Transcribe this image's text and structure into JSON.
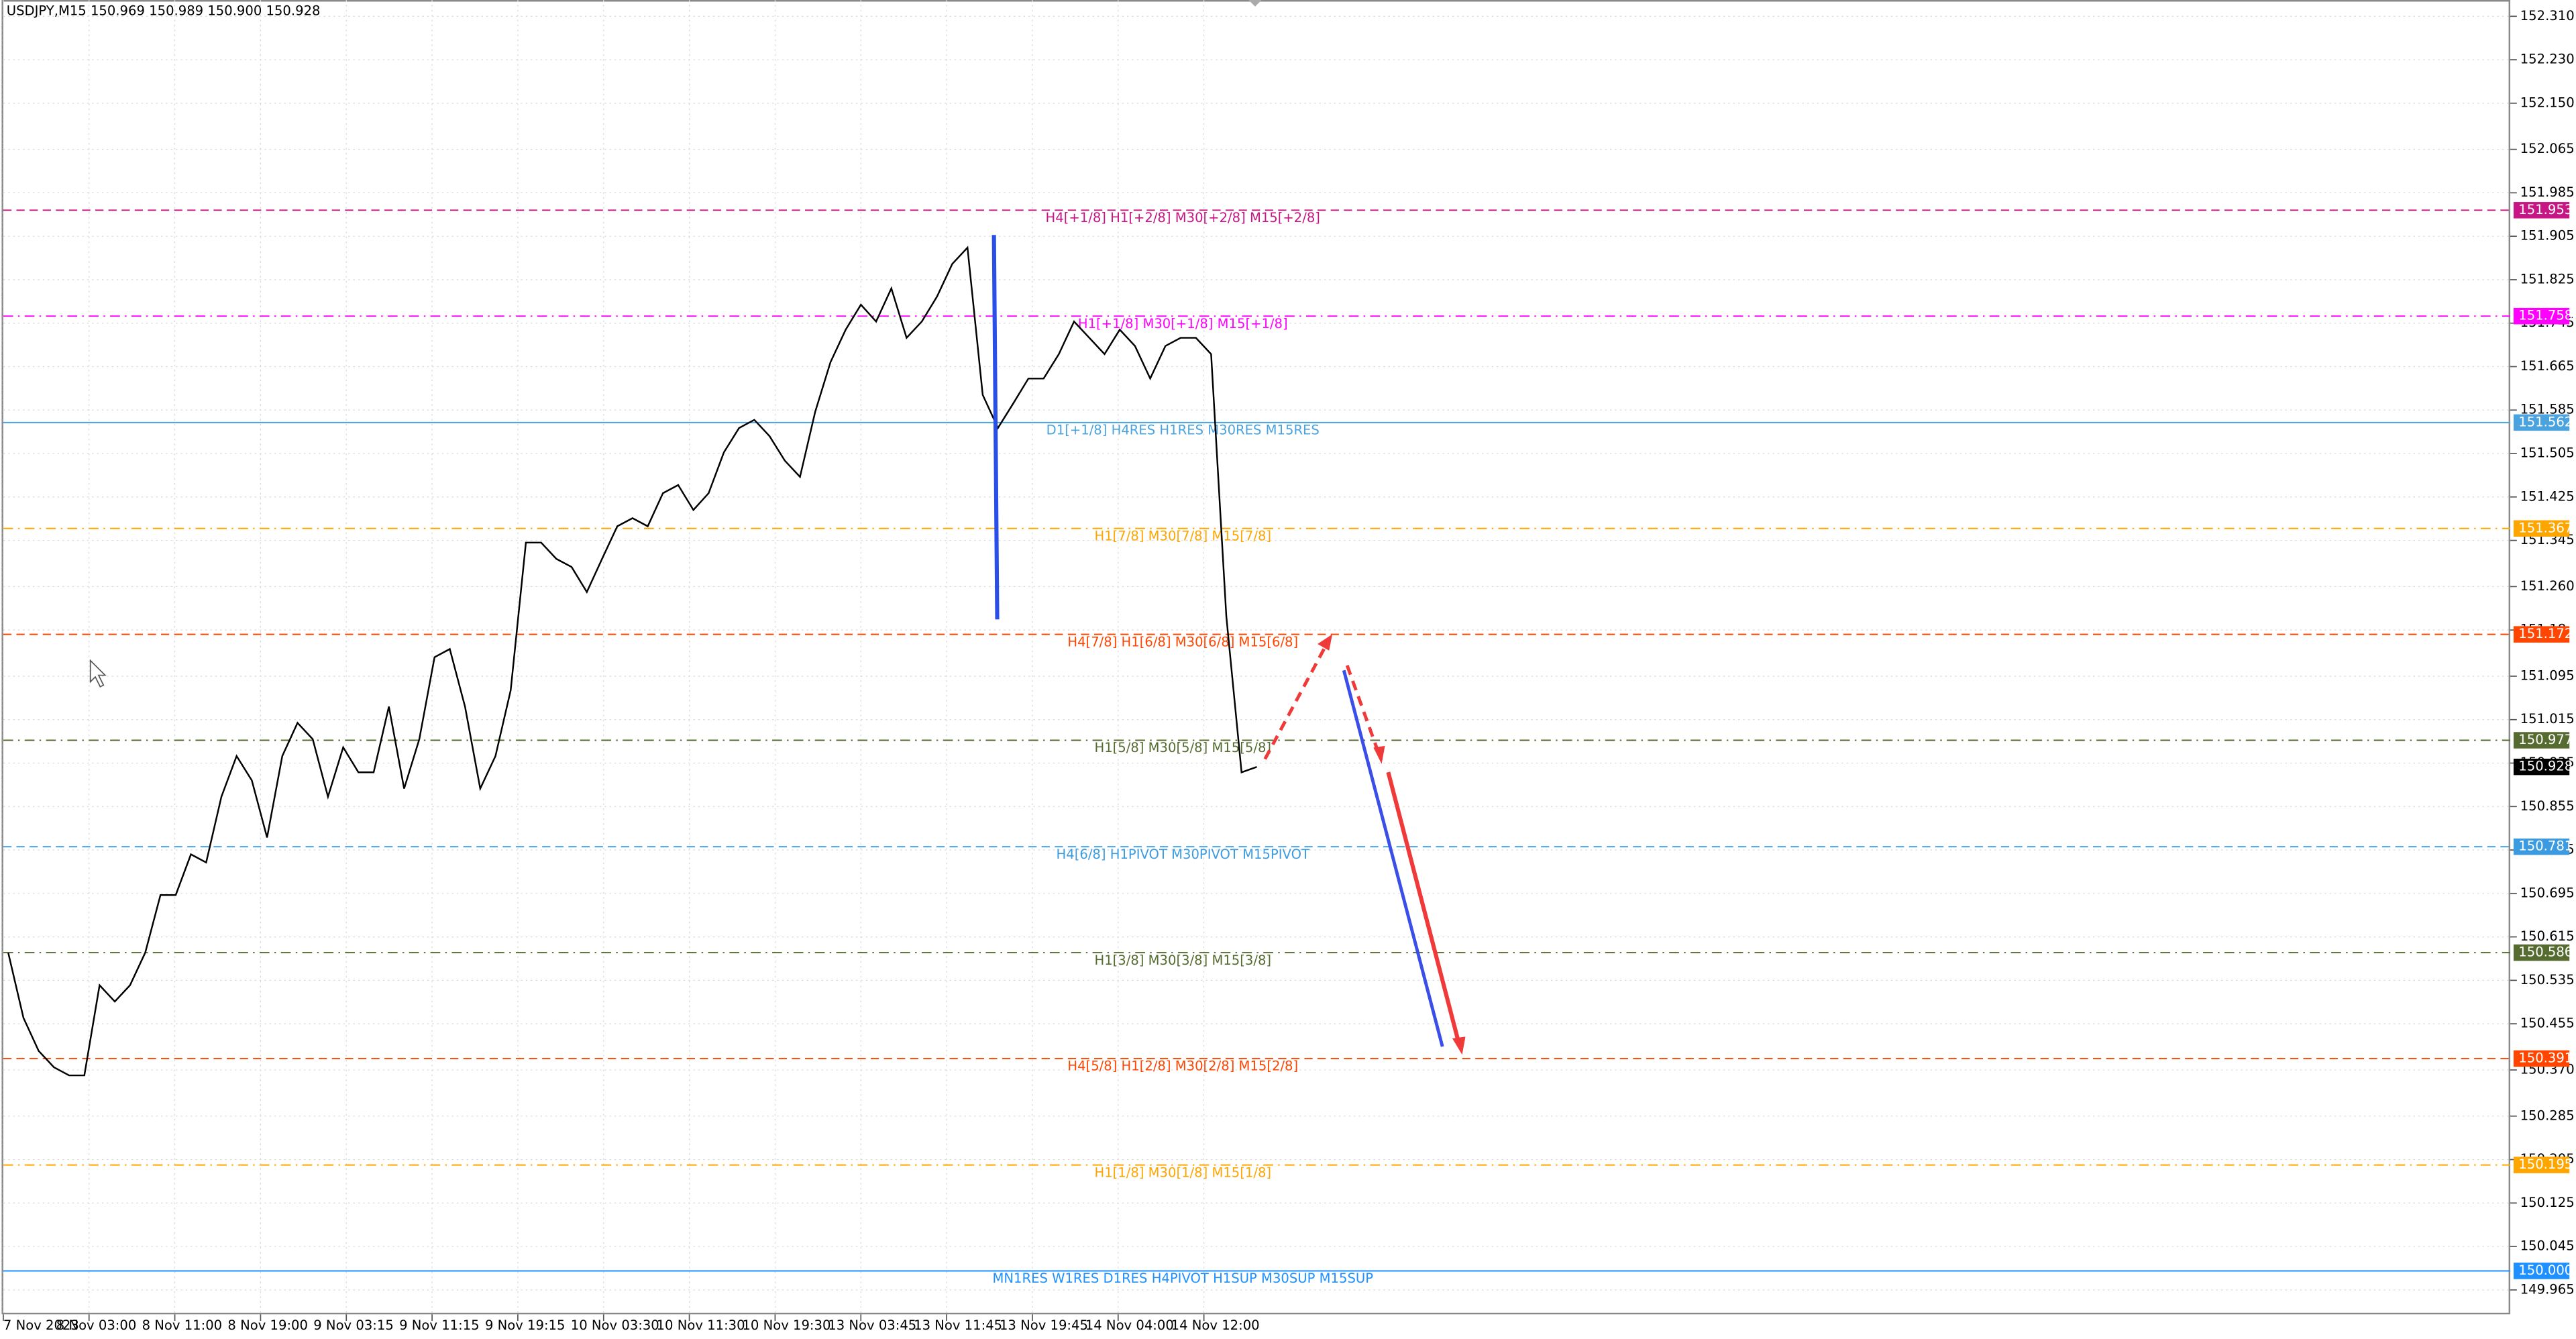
{
  "chart_data": {
    "type": "line",
    "title": "USDJPY,M15  150.969 150.989 150.900 150.928",
    "x_labels": [
      "7 Nov 2023",
      "8 Nov 03:00",
      "8 Nov 11:00",
      "8 Nov 19:00",
      "9 Nov 03:15",
      "9 Nov 11:15",
      "9 Nov 19:15",
      "10 Nov 03:30",
      "10 Nov 11:30",
      "10 Nov 19:30",
      "13 Nov 03:45",
      "13 Nov 11:45",
      "13 Nov 19:45",
      "14 Nov 04:00",
      "14 Nov 12:00"
    ],
    "series": [
      {
        "name": "USDJPY",
        "color": "#000000",
        "values": [
          150.586,
          150.466,
          150.405,
          150.375,
          150.36,
          150.36,
          150.526,
          150.496,
          150.526,
          150.586,
          150.692,
          150.692,
          150.767,
          150.752,
          150.873,
          150.948,
          150.903,
          150.798,
          150.948,
          151.009,
          150.979,
          150.873,
          150.964,
          150.918,
          150.918,
          151.039,
          150.888,
          150.979,
          151.13,
          151.145,
          151.039,
          150.888,
          150.948,
          151.069,
          151.341,
          151.341,
          151.311,
          151.296,
          151.25,
          151.311,
          151.371,
          151.386,
          151.371,
          151.432,
          151.447,
          151.401,
          151.432,
          151.507,
          151.552,
          151.567,
          151.537,
          151.492,
          151.462,
          151.582,
          151.673,
          151.733,
          151.779,
          151.748,
          151.809,
          151.718,
          151.748,
          151.794,
          151.854,
          151.884,
          151.613,
          151.552,
          151.597,
          151.643,
          151.643,
          151.688,
          151.748,
          151.718,
          151.688,
          151.733,
          151.703,
          151.643,
          151.703,
          151.718,
          151.718,
          151.688,
          151.205,
          150.918,
          150.928
        ]
      }
    ],
    "ylim": [
      149.92,
      152.34
    ],
    "yticks": [
      {
        "value": 152.31,
        "label": "152.310"
      },
      {
        "value": 152.23,
        "label": "152.230"
      },
      {
        "value": 152.15,
        "label": "152.150"
      },
      152.065,
      151.985,
      151.905,
      151.825,
      151.745,
      151.665,
      151.585,
      151.505,
      151.425,
      151.345,
      {
        "value": 151.26,
        "label": "151.260"
      },
      151.18,
      151.095,
      151.015,
      150.935,
      150.855,
      150.775,
      150.695,
      150.615,
      150.535,
      150.455,
      {
        "value": 150.37,
        "label": "150.370"
      },
      150.285,
      150.205,
      150.125,
      150.045,
      149.965
    ],
    "grid": true,
    "current_price": 150.928,
    "levels": [
      {
        "price": 151.953,
        "label": "H4[+1/8] H1[+2/8] M30[+2/8] M15[+2/8]",
        "color": "#c71585",
        "style": "dashed"
      },
      {
        "price": 151.758,
        "label": "H1[+1/8] M30[+1/8] M15[+1/8]",
        "color": "#ff00ff",
        "style": "dashdot"
      },
      {
        "price": 151.562,
        "label": "D1[+1/8] H4RES H1RES M30RES M15RES",
        "color": "#4aa3df",
        "style": "solid"
      },
      {
        "price": 151.367,
        "label": "H1[7/8] M30[7/8] M15[7/8]",
        "color": "#ffa500",
        "style": "dashdot"
      },
      {
        "price": 151.172,
        "label": "H4[7/8] H1[6/8] M30[6/8] M15[6/8]",
        "color": "#ff4500",
        "style": "dashed"
      },
      {
        "price": 150.977,
        "label": "H1[5/8] M30[5/8] M15[5/8]",
        "color": "#556b2f",
        "style": "dashdot"
      },
      {
        "price": 150.781,
        "label": "H4[6/8] H1PIVOT M30PIVOT M15PIVOT",
        "color": "#3c9be0",
        "style": "dashed"
      },
      {
        "price": 150.586,
        "label": "H1[3/8] M30[3/8] M15[3/8]",
        "color": "#556b2f",
        "style": "dashdot"
      },
      {
        "price": 150.391,
        "label": "H4[5/8] H1[2/8] M30[2/8] M15[2/8]",
        "color": "#ff4500",
        "style": "dashed"
      },
      {
        "price": 150.195,
        "label": "H1[1/8] M30[1/8] M15[1/8]",
        "color": "#ffa500",
        "style": "dashdot"
      },
      {
        "price": 150.0,
        "price_label": "150.000",
        "label": "MN1RES W1RES D1RES H4PIVOT H1SUP M30SUP M15SUP",
        "color": "#1e90ff",
        "style": "solid"
      }
    ]
  }
}
